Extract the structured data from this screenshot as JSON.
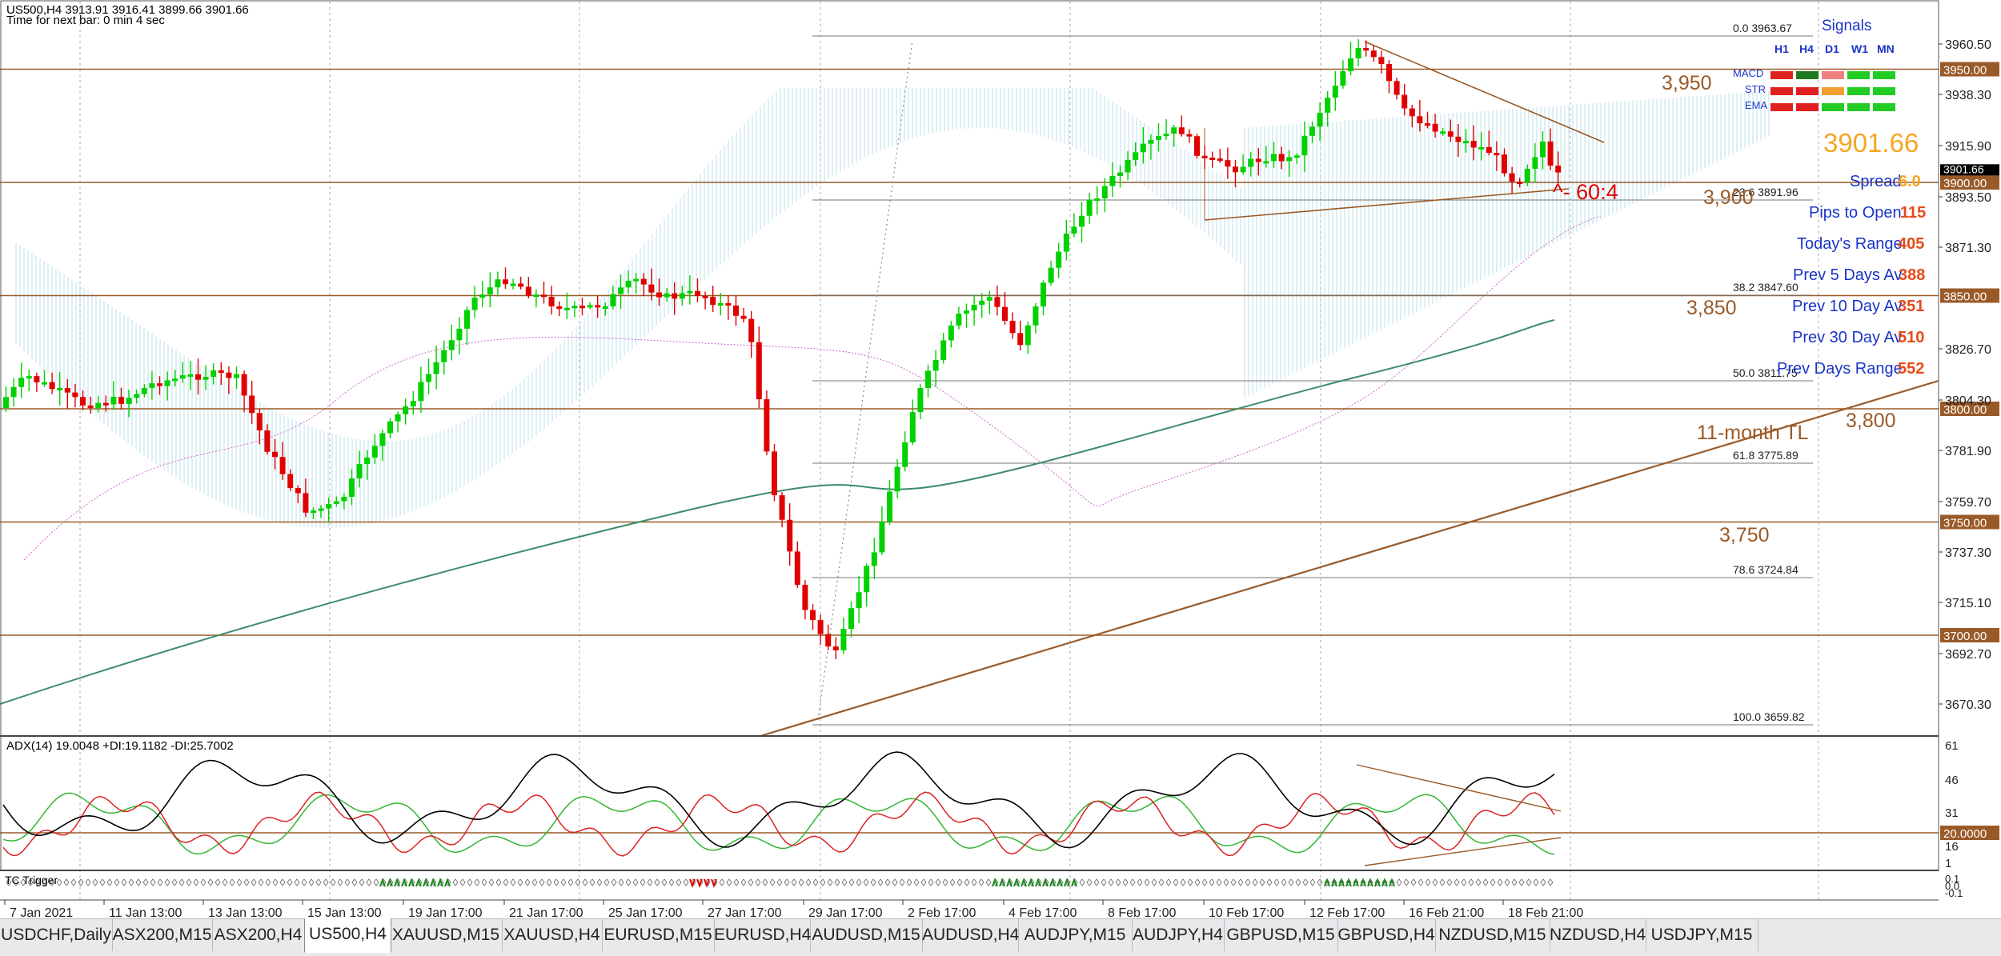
{
  "header": {
    "symbol_line": "US500,H4  3913.91 3916.41 3899.66 3901.66",
    "timer_line": "Time for next bar: 0 min 4 sec"
  },
  "price_axis": {
    "ticks": [
      "3960.50",
      "3938.30",
      "3915.90",
      "3893.50",
      "3871.30",
      "3826.70",
      "3804.30",
      "3781.90",
      "3759.70",
      "3737.30",
      "3715.10",
      "3692.70",
      "3670.30"
    ],
    "current_price": "3901.66",
    "level_labels": [
      "3950.00",
      "3900.00",
      "3850.00",
      "3800.00",
      "3750.00",
      "3700.00"
    ]
  },
  "time_axis": {
    "labels": [
      "7 Jan 2021",
      "11 Jan 13:00",
      "13 Jan 13:00",
      "15 Jan 13:00",
      "19 Jan 17:00",
      "21 Jan 17:00",
      "25 Jan 17:00",
      "27 Jan 17:00",
      "29 Jan 17:00",
      "2 Feb 17:00",
      "4 Feb 17:00",
      "8 Feb 17:00",
      "10 Feb 17:00",
      "12 Feb 17:00",
      "16 Feb 21:00",
      "18 Feb 21:00"
    ]
  },
  "fibonacci": [
    {
      "level": "0.0",
      "price": "3963.67"
    },
    {
      "level": "23.6",
      "price": "3891.96"
    },
    {
      "level": "38.2",
      "price": "3847.60"
    },
    {
      "level": "50.0",
      "price": "3811.75"
    },
    {
      "level": "61.8",
      "price": "3775.89"
    },
    {
      "level": "78.6",
      "price": "3724.84"
    },
    {
      "level": "100.0",
      "price": "3659.82"
    }
  ],
  "annotations": {
    "level_3950": "3,950",
    "level_3900": "3,900",
    "level_3850": "3,850",
    "level_3800": "3,800",
    "level_3750": "3,750",
    "trendline": "11-month TL",
    "countdown": "^- 60:4",
    "big_price": "3901.66"
  },
  "info_panel": {
    "spread_label": "Spread",
    "spread_value": "6.0",
    "pips_label": "Pips to Open",
    "pips_value": "115",
    "today_label": "Today's Range",
    "today_value": "405",
    "prev5_label": "Prev 5 Days Av",
    "prev5_value": "388",
    "prev10_label": "Prev 10 Day Av",
    "prev10_value": "351",
    "prev30_label": "Prev 30 Day Av",
    "prev30_value": "510",
    "prevdays_label": "Prev Days Range",
    "prevdays_value": "552"
  },
  "signals": {
    "title": "Signals",
    "timeframes": [
      "H1",
      "H4",
      "D1",
      "W1",
      "MN"
    ],
    "rows": [
      {
        "name": "MACD",
        "colors": [
          "#e02020",
          "#1f7a1f",
          "#f08080",
          "#22cc22",
          "#22cc22"
        ]
      },
      {
        "name": "STR",
        "colors": [
          "#e02020",
          "#e02020",
          "#f0a030",
          "#22cc22",
          "#22cc22"
        ]
      },
      {
        "name": "EMA",
        "colors": [
          "#e02020",
          "#e02020",
          "#22cc22",
          "#22cc22",
          "#22cc22"
        ]
      }
    ]
  },
  "adx": {
    "label": "ADX(14) 19.0048 +DI:19.1182 -DI:25.7002",
    "ticks": [
      "61",
      "46",
      "31",
      "20.0000",
      "16",
      "1"
    ]
  },
  "tc_panel": {
    "label": "TC Trigger",
    "ticks": [
      "0.1",
      "0.0",
      "-0.1"
    ]
  },
  "tabs": [
    "USDCHF,Daily",
    "ASX200,M15",
    "ASX200,H4",
    "US500,H4",
    "XAUUSD,M15",
    "XAUUSD,H4",
    "EURUSD,M15",
    "EURUSD,H4",
    "AUDUSD,M15",
    "AUDUSD,H4",
    "AUDJPY,M15",
    "AUDJPY,H4",
    "GBPUSD,M15",
    "GBPUSD,H4",
    "NZDUSD,M15",
    "NZDUSD,H4",
    "USDJPY,M15"
  ],
  "active_tab": "US500,H4",
  "colors": {
    "bull": "#00d000",
    "bear": "#e00000",
    "level": "#9a5a28",
    "ichimoku": "#80c8d8",
    "ma": "#3c8c6c",
    "price_bg": "#000000"
  }
}
